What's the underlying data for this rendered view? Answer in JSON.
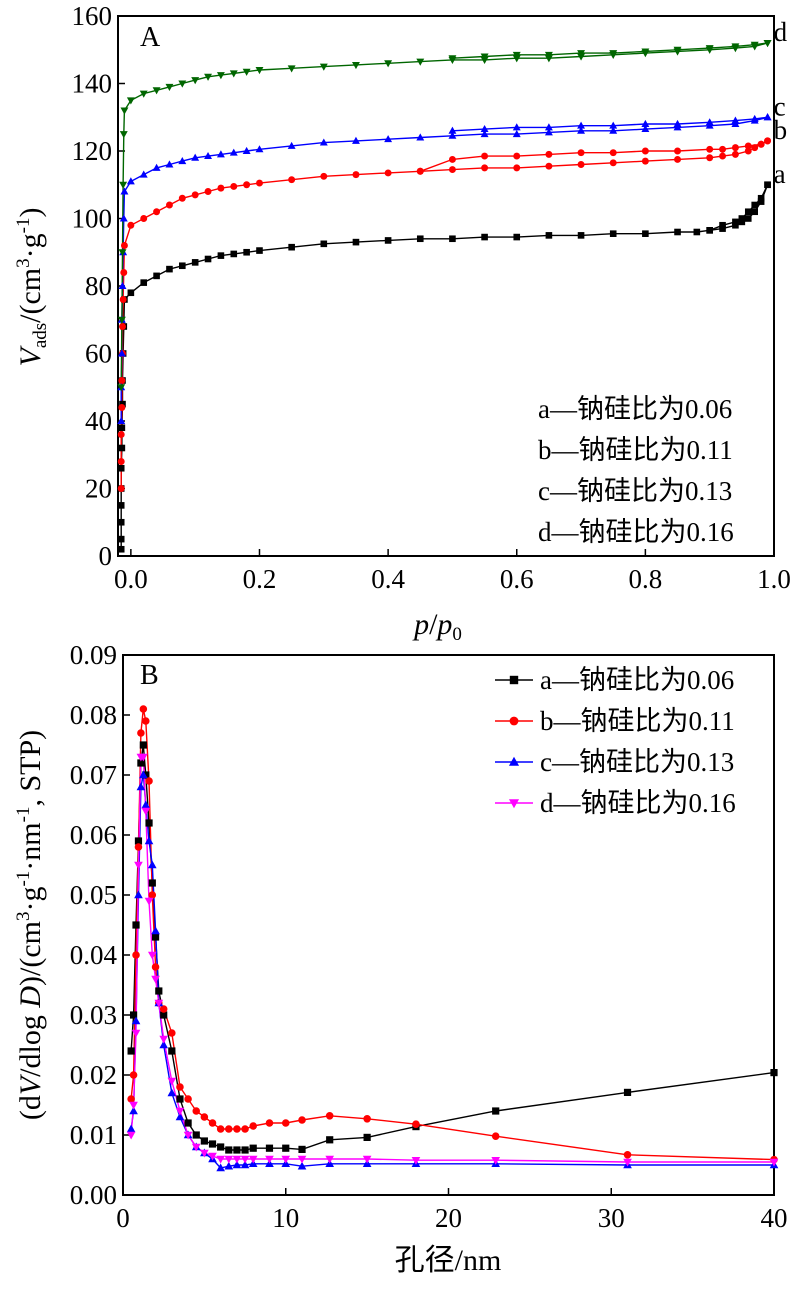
{
  "chart_data": [
    {
      "type": "line",
      "panel_label": "A",
      "xlabel": {
        "p1": "p",
        "sep": "/",
        "p2": "p",
        "sub": "0"
      },
      "ylabel": {
        "main": "V",
        "sub": "ads",
        "rest1": "/(cm",
        "sup1": "3",
        "rest2": "·g",
        "sup2": "-1",
        "rest3": ")"
      },
      "xlim": [
        -0.02,
        1.0
      ],
      "ylim": [
        0,
        160
      ],
      "xticks": [
        0.0,
        0.2,
        0.4,
        0.6,
        0.8,
        1.0
      ],
      "xtick_labels": [
        "0.0",
        "0.2",
        "0.4",
        "0.6",
        "0.8",
        "1.0"
      ],
      "yticks": [
        0,
        20,
        40,
        60,
        80,
        100,
        120,
        140,
        160
      ],
      "ytick_labels": [
        "0",
        "20",
        "40",
        "60",
        "80",
        "100",
        "120",
        "140",
        "160"
      ],
      "legend_position": "bottom-right",
      "legend": [
        "a—钠硅比为0.06",
        "b—钠硅比为0.11",
        "c—钠硅比为0.13",
        "d—钠硅比为0.16"
      ],
      "series": [
        {
          "name": "a",
          "color": "#000000",
          "marker": "square",
          "adsorption": {
            "x": [
              -0.015,
              -0.015,
              -0.015,
              -0.015,
              -0.015,
              -0.015,
              -0.014,
              -0.014,
              -0.013,
              -0.013,
              -0.012,
              -0.011,
              -0.01,
              0.0,
              0.02,
              0.04,
              0.06,
              0.08,
              0.1,
              0.12,
              0.14,
              0.16,
              0.18,
              0.2,
              0.25,
              0.3,
              0.35,
              0.4,
              0.45,
              0.5,
              0.55,
              0.6,
              0.65,
              0.7,
              0.75,
              0.8,
              0.85,
              0.88,
              0.9,
              0.92,
              0.94,
              0.95,
              0.96,
              0.97,
              0.98,
              0.99
            ],
            "y": [
              2,
              5,
              10,
              15,
              20,
              26,
              32,
              38,
              45,
              52,
              60,
              68,
              76,
              78,
              81,
              83,
              85,
              86,
              87,
              88,
              89,
              89.5,
              90,
              90.5,
              91.5,
              92.5,
              93,
              93.5,
              94,
              94,
              94.5,
              94.5,
              95,
              95,
              95.5,
              95.5,
              96,
              96,
              96.5,
              97,
              98,
              99,
              100,
              102,
              105,
              110
            ]
          },
          "desorption": {
            "x": [
              0.99,
              0.98,
              0.97,
              0.96,
              0.95,
              0.94,
              0.92,
              0.9
            ],
            "y": [
              110,
              106,
              104,
              102,
              100,
              99,
              98,
              96.5
            ]
          }
        },
        {
          "name": "b",
          "color": "#ff0000",
          "marker": "circle",
          "adsorption": {
            "x": [
              -0.015,
              -0.015,
              -0.015,
              -0.014,
              -0.014,
              -0.013,
              -0.013,
              -0.012,
              -0.011,
              -0.01,
              0.0,
              0.02,
              0.04,
              0.06,
              0.08,
              0.1,
              0.12,
              0.14,
              0.16,
              0.18,
              0.2,
              0.25,
              0.3,
              0.35,
              0.4,
              0.45,
              0.5,
              0.55,
              0.6,
              0.65,
              0.7,
              0.75,
              0.8,
              0.85,
              0.9,
              0.92,
              0.94,
              0.96,
              0.97,
              0.98,
              0.99
            ],
            "y": [
              20,
              28,
              36,
              44,
              52,
              60,
              68,
              76,
              84,
              92,
              98,
              100,
              102,
              104,
              106,
              107,
              108,
              109,
              109.5,
              110,
              110.5,
              111.5,
              112.5,
              113,
              113.5,
              114,
              114.5,
              115,
              115,
              115.5,
              116,
              116.5,
              117,
              117.5,
              118,
              118.5,
              119,
              120,
              121,
              122,
              123
            ]
          },
          "desorption": {
            "x": [
              0.99,
              0.98,
              0.96,
              0.94,
              0.92,
              0.9,
              0.85,
              0.8,
              0.75,
              0.7,
              0.65,
              0.6,
              0.55,
              0.5,
              0.45
            ],
            "y": [
              123,
              122,
              121.5,
              121,
              120.5,
              120.5,
              120,
              120,
              119.5,
              119.5,
              119,
              118.5,
              118.5,
              117.5,
              114
            ]
          }
        },
        {
          "name": "c",
          "color": "#0000ff",
          "marker": "triangle-up",
          "adsorption": {
            "x": [
              -0.015,
              -0.015,
              -0.014,
              -0.014,
              -0.013,
              -0.012,
              -0.011,
              -0.01,
              0.0,
              0.02,
              0.04,
              0.06,
              0.08,
              0.1,
              0.12,
              0.14,
              0.16,
              0.18,
              0.2,
              0.25,
              0.3,
              0.35,
              0.4,
              0.45,
              0.5,
              0.55,
              0.6,
              0.65,
              0.7,
              0.75,
              0.8,
              0.85,
              0.9,
              0.94,
              0.97,
              0.99
            ],
            "y": [
              40,
              50,
              60,
              70,
              80,
              90,
              100,
              108,
              111,
              113,
              115,
              116,
              117,
              118,
              118.5,
              119,
              119.5,
              120,
              120.5,
              121.5,
              122.5,
              123,
              123.5,
              124,
              124.5,
              125,
              125,
              125.5,
              126,
              126,
              126.5,
              127,
              127.5,
              128,
              129,
              130
            ]
          },
          "desorption": {
            "x": [
              0.99,
              0.97,
              0.94,
              0.9,
              0.85,
              0.8,
              0.75,
              0.7,
              0.65,
              0.6,
              0.55,
              0.5
            ],
            "y": [
              130,
              129.5,
              129,
              128.5,
              128,
              128,
              127.5,
              127.5,
              127,
              127,
              126.5,
              126
            ]
          }
        },
        {
          "name": "d",
          "color": "#006600",
          "marker": "triangle-down",
          "adsorption": {
            "x": [
              -0.015,
              -0.014,
              -0.013,
              -0.012,
              -0.011,
              -0.01,
              0.0,
              0.02,
              0.04,
              0.06,
              0.08,
              0.1,
              0.12,
              0.14,
              0.16,
              0.18,
              0.2,
              0.25,
              0.3,
              0.35,
              0.4,
              0.45,
              0.5,
              0.55,
              0.6,
              0.65,
              0.7,
              0.75,
              0.8,
              0.85,
              0.9,
              0.94,
              0.97,
              0.99
            ],
            "y": [
              50,
              70,
              90,
              110,
              125,
              132,
              135,
              137,
              138,
              139,
              140,
              141,
              142,
              142.5,
              143,
              143.5,
              144,
              144.5,
              145,
              145.5,
              146,
              146.5,
              147,
              147,
              147.5,
              147.5,
              148,
              148.5,
              149,
              149.5,
              150,
              150.5,
              151,
              152
            ]
          },
          "desorption": {
            "x": [
              0.99,
              0.97,
              0.94,
              0.9,
              0.85,
              0.8,
              0.75,
              0.7,
              0.65,
              0.6,
              0.55,
              0.5
            ],
            "y": [
              152,
              151.5,
              151,
              150.5,
              150,
              149.5,
              149,
              149,
              148.5,
              148.5,
              148,
              147.5
            ]
          }
        }
      ]
    },
    {
      "type": "line",
      "panel_label": "B",
      "xlabel": {
        "text": "孔径/nm"
      },
      "ylabel": {
        "p1": "(d",
        "v": "V",
        "p2": "/dlog ",
        "d": "D",
        "p3": ")/(cm",
        "sup1": "3",
        "p4": "·g",
        "sup2": "-1",
        "p5": "·nm",
        "sup3": "-1",
        "p6": ", STP)"
      },
      "xlim": [
        0,
        40
      ],
      "ylim": [
        0,
        0.09
      ],
      "xticks": [
        0,
        10,
        20,
        30,
        40
      ],
      "xtick_labels": [
        "0",
        "10",
        "20",
        "30",
        "40"
      ],
      "yticks": [
        0,
        0.01,
        0.02,
        0.03,
        0.04,
        0.05,
        0.06,
        0.07,
        0.08,
        0.09
      ],
      "ytick_labels": [
        "0.00",
        "0.01",
        "0.02",
        "0.03",
        "0.04",
        "0.05",
        "0.06",
        "0.07",
        "0.08",
        "0.09"
      ],
      "legend_position": "top-right",
      "legend": [
        "a—钠硅比为0.06",
        "b—钠硅比为0.11",
        "c—钠硅比为0.13",
        "d—钠硅比为0.16"
      ],
      "series": [
        {
          "name": "a",
          "color": "#000000",
          "marker": "square",
          "x": [
            0.5,
            0.65,
            0.8,
            0.95,
            1.1,
            1.25,
            1.4,
            1.6,
            1.8,
            2.0,
            2.2,
            2.5,
            3.0,
            3.5,
            4.0,
            4.5,
            5.0,
            5.5,
            6.0,
            6.5,
            7.0,
            7.5,
            8.0,
            9.0,
            10.0,
            11.0,
            12.7,
            15.0,
            18.0,
            22.9,
            31.0,
            40.0
          ],
          "y": [
            0.024,
            0.03,
            0.045,
            0.059,
            0.072,
            0.075,
            0.07,
            0.062,
            0.052,
            0.043,
            0.034,
            0.03,
            0.024,
            0.016,
            0.012,
            0.01,
            0.009,
            0.0085,
            0.008,
            0.0075,
            0.0075,
            0.0075,
            0.0078,
            0.0078,
            0.0078,
            0.0076,
            0.0092,
            0.0096,
            0.0114,
            0.014,
            0.0171,
            0.0204
          ]
        },
        {
          "name": "b",
          "color": "#ff0000",
          "marker": "circle",
          "x": [
            0.5,
            0.65,
            0.8,
            0.95,
            1.1,
            1.25,
            1.4,
            1.6,
            1.8,
            2.0,
            2.2,
            2.5,
            3.0,
            3.5,
            4.0,
            4.5,
            5.0,
            5.5,
            6.0,
            6.5,
            7.0,
            7.5,
            8.0,
            9.0,
            10.0,
            11.0,
            12.7,
            15.0,
            18.0,
            22.9,
            31.0,
            40.0
          ],
          "y": [
            0.016,
            0.02,
            0.04,
            0.058,
            0.077,
            0.081,
            0.079,
            0.069,
            0.05,
            0.038,
            0.032,
            0.031,
            0.027,
            0.018,
            0.016,
            0.014,
            0.013,
            0.012,
            0.011,
            0.011,
            0.011,
            0.011,
            0.0115,
            0.012,
            0.012,
            0.0125,
            0.0132,
            0.0127,
            0.0118,
            0.0098,
            0.0067,
            0.0059
          ]
        },
        {
          "name": "c",
          "color": "#0000ff",
          "marker": "triangle-up",
          "x": [
            0.5,
            0.65,
            0.8,
            0.95,
            1.1,
            1.25,
            1.4,
            1.6,
            1.8,
            2.0,
            2.2,
            2.5,
            3.0,
            3.5,
            4.0,
            4.5,
            5.0,
            5.5,
            6.0,
            6.5,
            7.0,
            7.5,
            8.0,
            9.0,
            10.0,
            11.0,
            12.7,
            15.0,
            18.0,
            22.9,
            31.0,
            40.0
          ],
          "y": [
            0.011,
            0.014,
            0.029,
            0.05,
            0.068,
            0.07,
            0.065,
            0.059,
            0.055,
            0.044,
            0.032,
            0.025,
            0.017,
            0.013,
            0.01,
            0.008,
            0.007,
            0.006,
            0.0045,
            0.0048,
            0.005,
            0.005,
            0.0052,
            0.0052,
            0.0052,
            0.0048,
            0.0052,
            0.0052,
            0.0052,
            0.0052,
            0.005,
            0.005
          ]
        },
        {
          "name": "d",
          "color": "#ff00ff",
          "marker": "triangle-down",
          "x": [
            0.5,
            0.65,
            0.8,
            0.95,
            1.1,
            1.25,
            1.4,
            1.6,
            1.8,
            2.0,
            2.2,
            2.5,
            3.0,
            3.5,
            4.0,
            4.5,
            5.0,
            5.5,
            6.0,
            6.5,
            7.0,
            7.5,
            8.0,
            9.0,
            10.0,
            11.0,
            12.7,
            15.0,
            18.0,
            22.9,
            31.0,
            40.0
          ],
          "y": [
            0.01,
            0.015,
            0.027,
            0.055,
            0.073,
            0.073,
            0.064,
            0.049,
            0.04,
            0.036,
            0.032,
            0.026,
            0.019,
            0.014,
            0.01,
            0.008,
            0.007,
            0.0065,
            0.006,
            0.006,
            0.006,
            0.006,
            0.006,
            0.006,
            0.006,
            0.006,
            0.006,
            0.006,
            0.0058,
            0.0058,
            0.0055,
            0.0055
          ]
        }
      ]
    }
  ]
}
